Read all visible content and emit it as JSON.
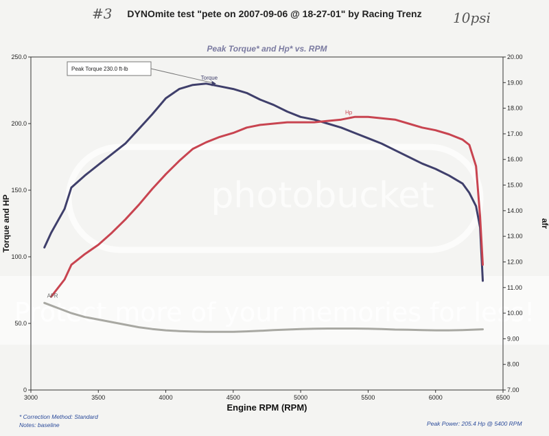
{
  "handwritten": {
    "left": "#3",
    "right": "10psi"
  },
  "header": {
    "title": "DYNOmite test \"pete on 2007-09-06 @ 18-27-01\" by Racing Trenz"
  },
  "footer": {
    "correction": "* Correction Method: Standard",
    "notes": "Notes: baseline",
    "peak_power": "Peak Power: 205.4 Hp @ 5400 RPM"
  },
  "watermark": {
    "logo_text": "photobucket",
    "banner_text": "Protect more of your memories for less!"
  },
  "chart_data": {
    "type": "line",
    "title": "Peak Torque* and Hp* vs. RPM",
    "xlabel": "Engine RPM (RPM)",
    "ylabel_left": "Torque and HP",
    "ylabel_right": "afr",
    "xlim": [
      3000,
      6500
    ],
    "ylim_left": [
      0,
      250
    ],
    "ylim_right": [
      7.0,
      20.0
    ],
    "x_ticks": [
      "3000",
      "3500",
      "4000",
      "4500",
      "5000",
      "5500",
      "6000",
      "6500"
    ],
    "y_left_ticks": [
      "0",
      "50.0",
      "100.0",
      "150.0",
      "200.0",
      "250.0"
    ],
    "y_right_ticks": [
      "7.00",
      "8.00",
      "9.00",
      "10.00",
      "11.00",
      "12.00",
      "13.00",
      "14.00",
      "15.00",
      "16.00",
      "17.00",
      "18.00",
      "19.00",
      "20.00"
    ],
    "grid": false,
    "annotation": {
      "text": "Peak Torque 230.0 ft-lb",
      "x": 4280,
      "y": 230
    },
    "series": [
      {
        "name": "Torque",
        "axis": "left",
        "color": "#3f3f6b",
        "x": [
          3100,
          3150,
          3250,
          3300,
          3400,
          3500,
          3600,
          3700,
          3800,
          3900,
          4000,
          4100,
          4200,
          4300,
          4400,
          4500,
          4600,
          4700,
          4800,
          4900,
          5000,
          5100,
          5200,
          5300,
          5400,
          5500,
          5600,
          5700,
          5800,
          5900,
          6000,
          6100,
          6200,
          6250,
          6300,
          6330,
          6350
        ],
        "y": [
          107,
          118,
          136,
          152,
          161,
          169,
          177,
          185,
          196,
          207,
          219,
          226,
          229,
          230,
          228,
          226,
          223,
          218,
          214,
          209,
          205,
          203,
          200,
          197,
          193,
          189,
          185,
          180,
          175,
          170,
          166,
          161,
          155,
          148,
          138,
          122,
          82
        ]
      },
      {
        "name": "Hp",
        "axis": "left",
        "color": "#c84450",
        "x": [
          3150,
          3250,
          3300,
          3400,
          3500,
          3600,
          3700,
          3800,
          3900,
          4000,
          4100,
          4200,
          4300,
          4400,
          4500,
          4600,
          4700,
          4800,
          4900,
          5000,
          5100,
          5200,
          5300,
          5400,
          5500,
          5600,
          5700,
          5800,
          5900,
          6000,
          6100,
          6200,
          6250,
          6300,
          6330,
          6350
        ],
        "y": [
          70,
          83,
          94,
          102,
          109,
          118,
          128,
          139,
          151,
          162,
          172,
          181,
          186,
          190,
          193,
          197,
          199,
          200,
          201,
          201,
          201,
          202,
          203,
          205,
          205,
          204,
          203,
          200,
          197,
          195,
          192,
          188,
          184,
          168,
          130,
          94
        ]
      },
      {
        "name": "AFR",
        "axis": "right",
        "color": "#a8a8a2",
        "x": [
          3100,
          3200,
          3300,
          3400,
          3500,
          3600,
          3700,
          3800,
          3900,
          4000,
          4100,
          4200,
          4300,
          4400,
          4500,
          4600,
          4700,
          4800,
          4900,
          5000,
          5100,
          5200,
          5300,
          5400,
          5500,
          5600,
          5700,
          5800,
          5900,
          6000,
          6100,
          6200,
          6300,
          6350
        ],
        "y": [
          10.4,
          10.2,
          10.0,
          9.85,
          9.75,
          9.65,
          9.55,
          9.45,
          9.38,
          9.33,
          9.3,
          9.28,
          9.27,
          9.27,
          9.27,
          9.29,
          9.31,
          9.34,
          9.36,
          9.38,
          9.39,
          9.4,
          9.4,
          9.4,
          9.39,
          9.38,
          9.36,
          9.35,
          9.34,
          9.33,
          9.33,
          9.34,
          9.36,
          9.37
        ]
      }
    ]
  }
}
